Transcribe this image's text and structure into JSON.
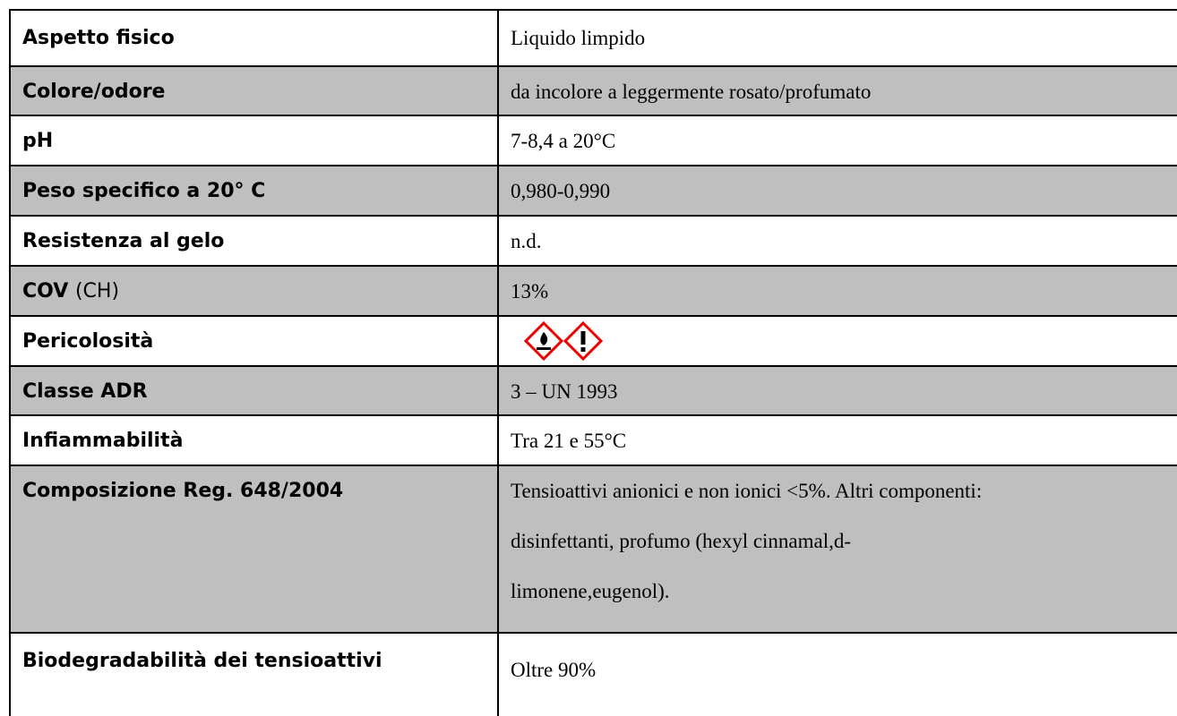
{
  "table": {
    "rows": [
      {
        "label": "Aspetto fisico",
        "value": "Liquido limpido"
      },
      {
        "label": "Colore/odore",
        "value": "da incolore a leggermente rosato/profumato"
      },
      {
        "label": "pH",
        "value": "7-8,4 a 20°C"
      },
      {
        "label": "Peso specifico a 20° C",
        "value": "0,980-0,990"
      },
      {
        "label": "Resistenza al gelo",
        "value": "n.d."
      },
      {
        "label": "COV",
        "label_note": "(CH)",
        "value": "13%"
      },
      {
        "label": "Pericolosità"
      },
      {
        "label": "Classe ADR",
        "value": "3 – UN 1993"
      },
      {
        "label": "Infiammabilità",
        "value": "Tra 21 e 55°C"
      },
      {
        "label": "Composizione Reg. 648/2004",
        "value_lines": [
          "Tensioattivi anionici e non ionici <5%. Altri componenti:",
          "disinfettanti, profumo (hexyl cinnamal,d-",
          "limonene,eugenol)."
        ]
      },
      {
        "label": "Biodegradabilità dei tensioattivi",
        "value": "Oltre 90%"
      }
    ]
  }
}
